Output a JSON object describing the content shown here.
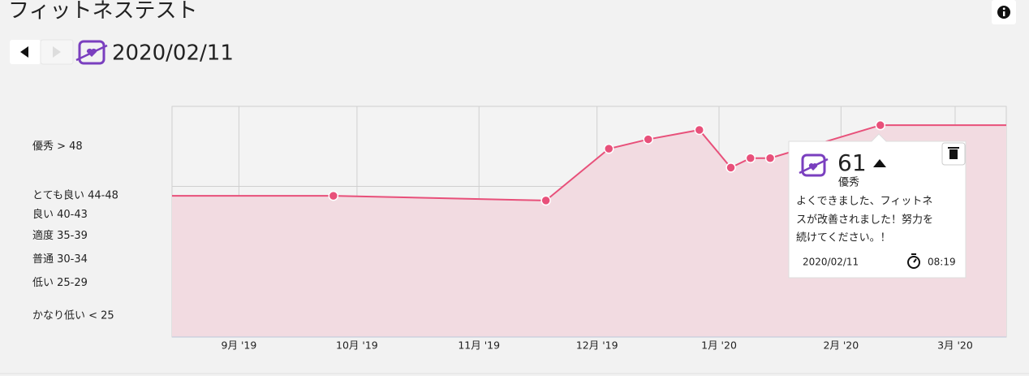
{
  "header": {
    "title": "フィットネステスト",
    "date": "2020/02/11"
  },
  "chart_data": {
    "type": "line",
    "x": [
      "2019-09-25",
      "2019-11-18",
      "2019-12-04",
      "2019-12-14",
      "2019-12-27",
      "2020-01-04",
      "2020-01-09",
      "2020-01-14",
      "2020-02-11"
    ],
    "series": [
      {
        "name": "フィットネステスト",
        "color": "#e8507a",
        "values": [
          46,
          45,
          56,
          58,
          60,
          52,
          54,
          54,
          61
        ]
      }
    ],
    "xlim": [
      "2019-08-15",
      "2020-03-14"
    ],
    "xticks": [
      {
        "value": "2019-09-01",
        "label": "9月 '19"
      },
      {
        "value": "2019-10-01",
        "label": "10月 '19"
      },
      {
        "value": "2019-11-01",
        "label": "11月 '19"
      },
      {
        "value": "2019-12-01",
        "label": "12月 '19"
      },
      {
        "value": "2020-01-01",
        "label": "1月 '20"
      },
      {
        "value": "2020-02-01",
        "label": "2月 '20"
      },
      {
        "value": "2020-03-01",
        "label": "3月 '20"
      }
    ],
    "ylim": [
      16,
      65
    ],
    "bands": [
      {
        "label": "優秀 > 48",
        "from": 48
      },
      {
        "label": "とても良い 44-48",
        "from": 44
      },
      {
        "label": "良い 40-43",
        "from": 40
      },
      {
        "label": "適度 35-39",
        "from": 35
      },
      {
        "label": "普通 30-34",
        "from": 30
      },
      {
        "label": "低い 25-29",
        "from": 25
      },
      {
        "label": "かなり低い < 25",
        "from": 16
      }
    ]
  },
  "tooltip": {
    "rating": "優秀",
    "message_lines": [
      "よくできました、フィットネ",
      "スが改善されました！努力を",
      "続けてください。！"
    ],
    "date": "2020/02/11",
    "time": "08:19"
  }
}
